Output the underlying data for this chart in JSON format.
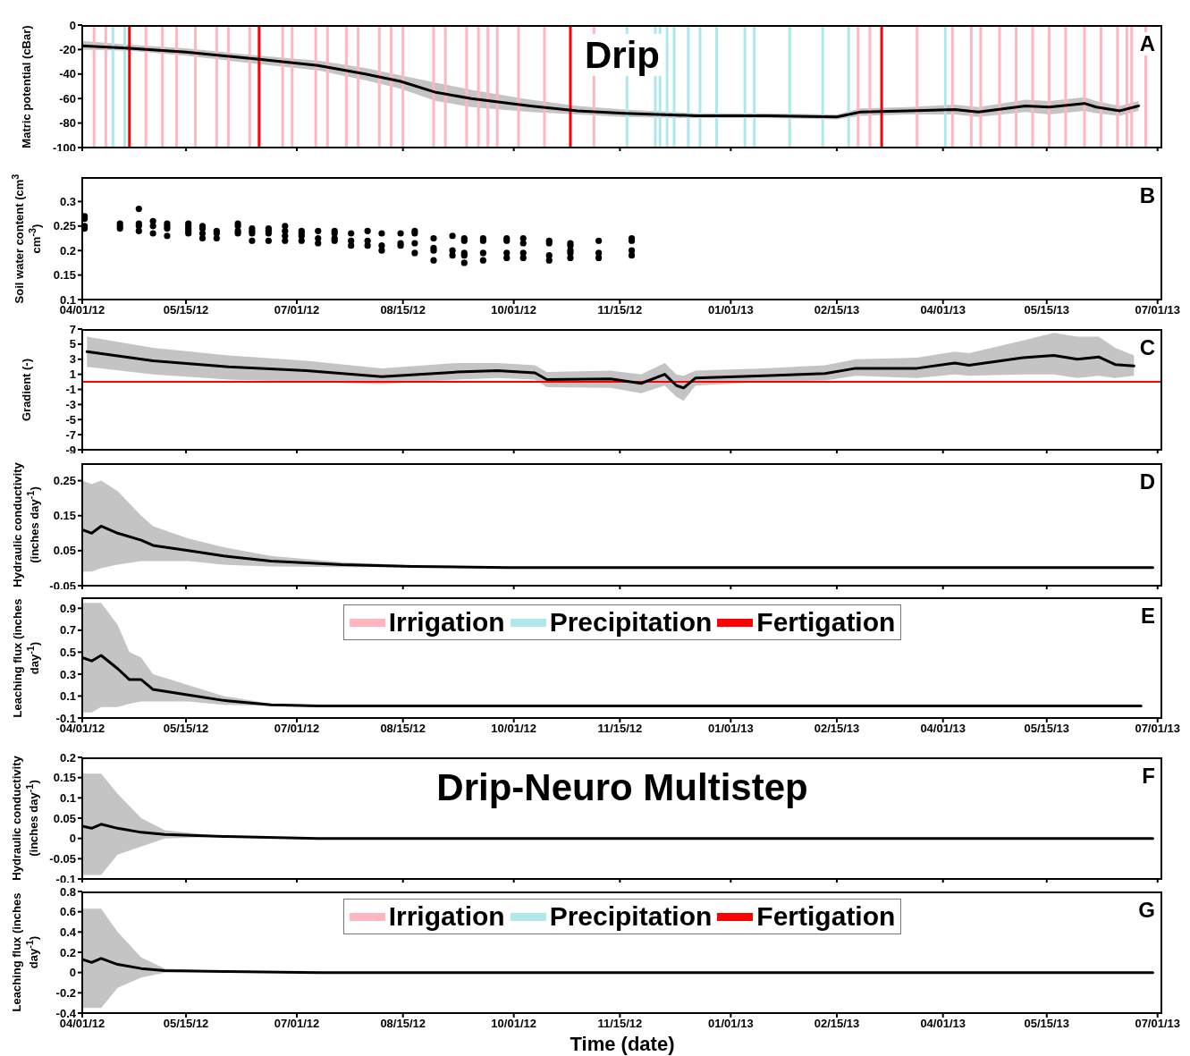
{
  "chart_data": [
    {
      "type": "line",
      "title": "Drip",
      "annotations": [
        "A"
      ],
      "ylabel": "Matric potential (cBar)",
      "xlim": [
        "2012-04-01",
        "2013-07-03"
      ],
      "ylim": [
        -100,
        0
      ],
      "yticks": [
        -100,
        -80,
        -60,
        -40,
        -20,
        0
      ],
      "tick_labels": "y",
      "marker": "none",
      "line_style": "solid",
      "xticks": [
        {
          "value": "2012-04-01",
          "label": null
        },
        {
          "value": "2012-05-15",
          "label": null
        },
        {
          "value": "2012-07-01",
          "label": null
        },
        {
          "value": "2012-08-15",
          "label": null
        },
        {
          "value": "2012-10-01",
          "label": null
        },
        {
          "value": "2012-11-15",
          "label": null
        },
        {
          "value": "2013-01-01",
          "label": null
        },
        {
          "value": "2013-02-15",
          "label": null
        },
        {
          "value": "2013-04-01",
          "label": null
        },
        {
          "value": "2013-05-15",
          "label": null
        },
        {
          "value": "2013-07-01",
          "label": null
        }
      ],
      "ref_lines": [
        {
          "axis": "x",
          "value": "2012-04-06",
          "color": "#ffb6c1"
        },
        {
          "axis": "x",
          "value": "2012-04-11",
          "color": "#ffb6c1"
        },
        {
          "axis": "x",
          "value": "2012-04-28",
          "color": "#ffb6c1"
        },
        {
          "axis": "x",
          "value": "2012-05-05",
          "color": "#ffb6c1"
        },
        {
          "axis": "x",
          "value": "2012-05-11",
          "color": "#ffb6c1"
        },
        {
          "axis": "x",
          "value": "2012-05-19",
          "color": "#ffb6c1"
        },
        {
          "axis": "x",
          "value": "2012-05-28",
          "color": "#ffb6c1"
        },
        {
          "axis": "x",
          "value": "2012-06-02",
          "color": "#ffb6c1"
        },
        {
          "axis": "x",
          "value": "2012-06-11",
          "color": "#ffb6c1"
        },
        {
          "axis": "x",
          "value": "2012-06-25",
          "color": "#ffb6c1"
        },
        {
          "axis": "x",
          "value": "2012-06-29",
          "color": "#ffb6c1"
        },
        {
          "axis": "x",
          "value": "2012-07-09",
          "color": "#ffb6c1"
        },
        {
          "axis": "x",
          "value": "2012-07-14",
          "color": "#ffb6c1"
        },
        {
          "axis": "x",
          "value": "2012-07-22",
          "color": "#ffb6c1"
        },
        {
          "axis": "x",
          "value": "2012-07-27",
          "color": "#ffb6c1"
        },
        {
          "axis": "x",
          "value": "2012-08-05",
          "color": "#ffb6c1"
        },
        {
          "axis": "x",
          "value": "2012-08-10",
          "color": "#ffb6c1"
        },
        {
          "axis": "x",
          "value": "2012-08-15",
          "color": "#ffb6c1"
        },
        {
          "axis": "x",
          "value": "2012-08-28",
          "color": "#ffb6c1"
        },
        {
          "axis": "x",
          "value": "2012-09-02",
          "color": "#ffb6c1"
        },
        {
          "axis": "x",
          "value": "2012-09-11",
          "color": "#ffb6c1"
        },
        {
          "axis": "x",
          "value": "2012-09-16",
          "color": "#ffb6c1"
        },
        {
          "axis": "x",
          "value": "2012-09-20",
          "color": "#ffb6c1"
        },
        {
          "axis": "x",
          "value": "2012-09-24",
          "color": "#ffb6c1"
        },
        {
          "axis": "x",
          "value": "2012-10-03",
          "color": "#ffb6c1"
        },
        {
          "axis": "x",
          "value": "2012-10-14",
          "color": "#ffb6c1"
        },
        {
          "axis": "x",
          "value": "2012-11-04",
          "color": "#ffb6c1"
        },
        {
          "axis": "x",
          "value": "2013-02-24",
          "color": "#ffb6c1"
        },
        {
          "axis": "x",
          "value": "2013-03-01",
          "color": "#ffb6c1"
        },
        {
          "axis": "x",
          "value": "2013-03-21",
          "color": "#ffb6c1"
        },
        {
          "axis": "x",
          "value": "2013-04-05",
          "color": "#ffb6c1"
        },
        {
          "axis": "x",
          "value": "2013-04-13",
          "color": "#ffb6c1"
        },
        {
          "axis": "x",
          "value": "2013-04-17",
          "color": "#ffb6c1"
        },
        {
          "axis": "x",
          "value": "2013-04-25",
          "color": "#ffb6c1"
        },
        {
          "axis": "x",
          "value": "2013-05-02",
          "color": "#ffb6c1"
        },
        {
          "axis": "x",
          "value": "2013-05-09",
          "color": "#ffb6c1"
        },
        {
          "axis": "x",
          "value": "2013-05-16",
          "color": "#ffb6c1"
        },
        {
          "axis": "x",
          "value": "2013-05-23",
          "color": "#ffb6c1"
        },
        {
          "axis": "x",
          "value": "2013-05-31",
          "color": "#ffb6c1"
        },
        {
          "axis": "x",
          "value": "2013-06-07",
          "color": "#ffb6c1"
        },
        {
          "axis": "x",
          "value": "2013-06-14",
          "color": "#ffb6c1"
        },
        {
          "axis": "x",
          "value": "2013-06-18",
          "color": "#ffb6c1"
        },
        {
          "axis": "x",
          "value": "2013-06-20",
          "color": "#ffb6c1"
        },
        {
          "axis": "x",
          "value": "2013-06-26",
          "color": "#ffb6c1"
        },
        {
          "axis": "x",
          "value": "2012-04-14",
          "color": "#aee8ea"
        },
        {
          "axis": "x",
          "value": "2012-04-19",
          "color": "#aee8ea"
        },
        {
          "axis": "x",
          "value": "2012-11-18",
          "color": "#aee8ea"
        },
        {
          "axis": "x",
          "value": "2012-11-30",
          "color": "#aee8ea"
        },
        {
          "axis": "x",
          "value": "2012-12-02",
          "color": "#aee8ea"
        },
        {
          "axis": "x",
          "value": "2012-12-05",
          "color": "#aee8ea"
        },
        {
          "axis": "x",
          "value": "2012-12-08",
          "color": "#aee8ea"
        },
        {
          "axis": "x",
          "value": "2012-12-14",
          "color": "#aee8ea"
        },
        {
          "axis": "x",
          "value": "2012-12-19",
          "color": "#aee8ea"
        },
        {
          "axis": "x",
          "value": "2012-12-26",
          "color": "#aee8ea"
        },
        {
          "axis": "x",
          "value": "2013-01-07",
          "color": "#aee8ea"
        },
        {
          "axis": "x",
          "value": "2013-01-11",
          "color": "#aee8ea"
        },
        {
          "axis": "x",
          "value": "2013-01-26",
          "color": "#aee8ea"
        },
        {
          "axis": "x",
          "value": "2013-02-09",
          "color": "#aee8ea"
        },
        {
          "axis": "x",
          "value": "2013-02-20",
          "color": "#aee8ea"
        },
        {
          "axis": "x",
          "value": "2013-04-02",
          "color": "#aee8ea"
        },
        {
          "axis": "x",
          "value": "2012-04-21",
          "color": "#ff0000"
        },
        {
          "axis": "x",
          "value": "2012-06-15",
          "color": "#ff0000"
        },
        {
          "axis": "x",
          "value": "2012-10-25",
          "color": "#ff0000"
        },
        {
          "axis": "x",
          "value": "2013-03-06",
          "color": "#ff0000"
        }
      ],
      "series": [
        {
          "color": "#000000",
          "x": [
            "2012-04-01",
            "2012-04-21",
            "2012-05-15",
            "2012-06-15",
            "2012-07-10",
            "2012-07-30",
            "2012-08-14",
            "2012-08-29",
            "2012-09-13",
            "2012-10-08",
            "2012-10-28",
            "2012-11-17",
            "2012-12-17",
            "2013-01-16",
            "2013-02-15",
            "2013-02-25",
            "2013-03-17",
            "2013-04-06",
            "2013-04-16",
            "2013-05-06",
            "2013-05-16",
            "2013-05-31",
            "2013-06-05",
            "2013-06-15",
            "2013-06-23"
          ],
          "values": [
            -17,
            -19,
            -22,
            -28,
            -33,
            -40,
            -46,
            -55,
            -60,
            -66,
            -70,
            -72,
            -74,
            -74,
            -75,
            -71,
            -70,
            -69,
            -71,
            -66,
            -67,
            -64,
            -67,
            -70,
            -66
          ],
          "lower": [
            -20,
            -21,
            -25,
            -32,
            -37,
            -45,
            -52,
            -62,
            -67,
            -71,
            -73,
            -75,
            -76,
            -76,
            -77,
            -74,
            -73,
            -73,
            -75,
            -71,
            -73,
            -70,
            -72,
            -74,
            -70
          ],
          "upper": [
            -13,
            -16,
            -19,
            -25,
            -29,
            -35,
            -41,
            -47,
            -53,
            -61,
            -66,
            -69,
            -72,
            -72,
            -73,
            -68,
            -67,
            -65,
            -67,
            -61,
            -62,
            -59,
            -62,
            -66,
            -62
          ]
        }
      ]
    },
    {
      "type": "scatter",
      "annotations": [
        "B"
      ],
      "ylabel": "Soil water content (cm$^{3}$ cm$^{-3}$)",
      "xlim": [
        "2012-04-01",
        "2013-07-03"
      ],
      "ylim": [
        0.1,
        0.35
      ],
      "yticks": [
        0.1,
        0.15,
        0.2,
        0.25,
        0.3
      ],
      "marker": "circle",
      "xticks": [
        {
          "value": "2012-04-01",
          "label": "04/01/12"
        },
        {
          "value": "2012-05-15",
          "label": "05/15/12"
        },
        {
          "value": "2012-07-01",
          "label": "07/01/12"
        },
        {
          "value": "2012-08-15",
          "label": "08/15/12"
        },
        {
          "value": "2012-10-01",
          "label": "10/01/12"
        },
        {
          "value": "2012-11-15",
          "label": "11/15/12"
        },
        {
          "value": "2013-01-01",
          "label": "01/01/13"
        },
        {
          "value": "2013-02-15",
          "label": "02/15/13"
        },
        {
          "value": "2013-04-01",
          "label": "04/01/13"
        },
        {
          "value": "2013-05-15",
          "label": "05/15/13"
        },
        {
          "value": "2013-07-01",
          "label": "07/01/13"
        }
      ],
      "series": [
        {
          "color": "#000000",
          "x": [
            "2012-04-02",
            "2012-04-02",
            "2012-04-02",
            "2012-04-02",
            "2012-04-17",
            "2012-04-17",
            "2012-04-17",
            "2012-04-25",
            "2012-04-25",
            "2012-04-25",
            "2012-04-25",
            "2012-05-01",
            "2012-05-01",
            "2012-05-01",
            "2012-05-07",
            "2012-05-07",
            "2012-05-07",
            "2012-05-07",
            "2012-05-16",
            "2012-05-16",
            "2012-05-16",
            "2012-05-16",
            "2012-05-16",
            "2012-05-22",
            "2012-05-22",
            "2012-05-22",
            "2012-05-22",
            "2012-05-28",
            "2012-05-28",
            "2012-05-28",
            "2012-06-06",
            "2012-06-06",
            "2012-06-06",
            "2012-06-06",
            "2012-06-12",
            "2012-06-12",
            "2012-06-12",
            "2012-06-12",
            "2012-06-19",
            "2012-06-19",
            "2012-06-19",
            "2012-06-19",
            "2012-06-26",
            "2012-06-26",
            "2012-06-26",
            "2012-06-26",
            "2012-07-03",
            "2012-07-03",
            "2012-07-03",
            "2012-07-03",
            "2012-07-10",
            "2012-07-10",
            "2012-07-10",
            "2012-07-17",
            "2012-07-17",
            "2012-07-17",
            "2012-07-17",
            "2012-07-24",
            "2012-07-24",
            "2012-07-24",
            "2012-07-31",
            "2012-07-31",
            "2012-07-31",
            "2012-08-06",
            "2012-08-06",
            "2012-08-06",
            "2012-08-14",
            "2012-08-14",
            "2012-08-14",
            "2012-08-20",
            "2012-08-20",
            "2012-08-20",
            "2012-08-20",
            "2012-08-28",
            "2012-08-28",
            "2012-08-28",
            "2012-08-28",
            "2012-09-05",
            "2012-09-05",
            "2012-09-05",
            "2012-09-10",
            "2012-09-10",
            "2012-09-10",
            "2012-09-10",
            "2012-09-10",
            "2012-09-18",
            "2012-09-18",
            "2012-09-18",
            "2012-09-18",
            "2012-09-28",
            "2012-09-28",
            "2012-09-28",
            "2012-09-28",
            "2012-10-05",
            "2012-10-05",
            "2012-10-05",
            "2012-10-05",
            "2012-10-16",
            "2012-10-16",
            "2012-10-16",
            "2012-10-16",
            "2012-10-25",
            "2012-10-25",
            "2012-10-25",
            "2012-10-25",
            "2012-10-25",
            "2012-11-06",
            "2012-11-06",
            "2012-11-06",
            "2012-11-20",
            "2012-11-20",
            "2012-11-20",
            "2012-11-20"
          ],
          "values": [
            0.27,
            0.265,
            0.25,
            0.245,
            0.255,
            0.25,
            0.245,
            0.285,
            0.255,
            0.25,
            0.24,
            0.26,
            0.25,
            0.235,
            0.255,
            0.25,
            0.245,
            0.23,
            0.255,
            0.25,
            0.245,
            0.24,
            0.235,
            0.25,
            0.245,
            0.235,
            0.225,
            0.24,
            0.235,
            0.225,
            0.255,
            0.25,
            0.24,
            0.235,
            0.245,
            0.24,
            0.235,
            0.22,
            0.245,
            0.24,
            0.235,
            0.22,
            0.25,
            0.24,
            0.23,
            0.22,
            0.24,
            0.235,
            0.23,
            0.22,
            0.24,
            0.225,
            0.215,
            0.24,
            0.235,
            0.225,
            0.22,
            0.235,
            0.22,
            0.21,
            0.24,
            0.22,
            0.21,
            0.235,
            0.21,
            0.2,
            0.235,
            0.215,
            0.21,
            0.24,
            0.235,
            0.215,
            0.195,
            0.225,
            0.205,
            0.2,
            0.18,
            0.23,
            0.2,
            0.19,
            0.225,
            0.22,
            0.195,
            0.19,
            0.175,
            0.225,
            0.22,
            0.195,
            0.18,
            0.225,
            0.22,
            0.195,
            0.185,
            0.225,
            0.215,
            0.195,
            0.185,
            0.22,
            0.215,
            0.19,
            0.18,
            0.215,
            0.21,
            0.2,
            0.195,
            0.185,
            0.22,
            0.195,
            0.185,
            0.225,
            0.22,
            0.2,
            0.19
          ]
        }
      ]
    },
    {
      "type": "line",
      "annotations": [
        "C"
      ],
      "ylabel": "Gradient (-)",
      "xlim": [
        "2012-04-01",
        "2013-07-03"
      ],
      "ylim": [
        -9,
        7
      ],
      "yticks": [
        -9,
        -7,
        -5,
        -3,
        -1,
        1,
        3,
        5,
        7
      ],
      "tick_labels": "y",
      "marker": "none",
      "line_style": "solid",
      "xticks": [
        {
          "value": "2012-04-01",
          "label": null
        },
        {
          "value": "2012-05-15",
          "label": null
        },
        {
          "value": "2012-07-01",
          "label": null
        },
        {
          "value": "2012-08-15",
          "label": null
        },
        {
          "value": "2012-10-01",
          "label": null
        },
        {
          "value": "2012-11-15",
          "label": null
        },
        {
          "value": "2013-01-01",
          "label": null
        },
        {
          "value": "2013-02-15",
          "label": null
        },
        {
          "value": "2013-04-01",
          "label": null
        },
        {
          "value": "2013-05-15",
          "label": null
        },
        {
          "value": "2013-07-01",
          "label": null
        }
      ],
      "ref_lines": [
        {
          "axis": "y",
          "value": 0,
          "color": "#ff0000"
        }
      ],
      "series": [
        {
          "color": "#000000",
          "x": [
            "2012-04-03",
            "2012-05-01",
            "2012-06-02",
            "2012-07-05",
            "2012-08-06",
            "2012-09-07",
            "2012-09-24",
            "2012-10-10",
            "2012-10-15",
            "2012-11-11",
            "2012-11-24",
            "2012-12-04",
            "2012-12-09",
            "2012-12-12",
            "2012-12-17",
            "2013-01-15",
            "2013-02-10",
            "2013-02-23",
            "2013-03-21",
            "2013-04-06",
            "2013-04-12",
            "2013-05-05",
            "2013-05-18",
            "2013-05-28",
            "2013-06-06",
            "2013-06-13",
            "2013-06-21"
          ],
          "values": [
            4,
            2.8,
            2,
            1.5,
            0.7,
            1.3,
            1.5,
            1.2,
            0.3,
            0.4,
            -0.2,
            1,
            -0.5,
            -0.8,
            0.5,
            0.8,
            1.1,
            1.8,
            1.8,
            2.5,
            2.2,
            3.2,
            3.5,
            3,
            3.3,
            2.3,
            2.1
          ],
          "lower": [
            2,
            1,
            0.3,
            0,
            -0.3,
            0.3,
            0.5,
            0.3,
            -0.7,
            -0.8,
            -1.5,
            -0.5,
            -2,
            -2.5,
            -0.5,
            0,
            0.2,
            0.8,
            0.5,
            1,
            0.8,
            1,
            1,
            0.5,
            0.8,
            0.5,
            0.8
          ],
          "upper": [
            6,
            4.5,
            3.5,
            2.8,
            1.8,
            2.5,
            2.5,
            2.2,
            1.3,
            1.5,
            1,
            2.5,
            1,
            0.8,
            1.5,
            1.8,
            2.2,
            3,
            3.2,
            4,
            3.8,
            5.5,
            6.5,
            6,
            6,
            4.5,
            3.5
          ]
        }
      ]
    },
    {
      "type": "line",
      "annotations": [
        "D"
      ],
      "ylabel": "Hydraulic conductivity (inches day$^{-1}$)",
      "xlim": [
        "2012-04-01",
        "2013-07-03"
      ],
      "ylim": [
        -0.05,
        0.3
      ],
      "yticks": [
        -0.05,
        0.05,
        0.15,
        0.25
      ],
      "tick_labels": "y",
      "marker": "none",
      "line_style": "solid",
      "xticks": [
        {
          "value": "2012-04-01",
          "label": null
        },
        {
          "value": "2012-05-15",
          "label": null
        },
        {
          "value": "2012-07-01",
          "label": null
        },
        {
          "value": "2012-08-15",
          "label": null
        },
        {
          "value": "2012-10-01",
          "label": null
        },
        {
          "value": "2012-11-15",
          "label": null
        },
        {
          "value": "2013-01-01",
          "label": null
        },
        {
          "value": "2013-02-15",
          "label": null
        },
        {
          "value": "2013-04-01",
          "label": null
        },
        {
          "value": "2013-05-15",
          "label": null
        },
        {
          "value": "2013-07-01",
          "label": null
        }
      ],
      "series": [
        {
          "color": "#000000",
          "x": [
            "2012-04-01",
            "2012-04-05",
            "2012-04-09",
            "2012-04-16",
            "2012-04-26",
            "2012-05-01",
            "2012-05-16",
            "2012-05-31",
            "2012-06-20",
            "2012-07-20",
            "2012-08-19",
            "2012-09-28",
            "2013-06-29"
          ],
          "values": [
            0.11,
            0.1,
            0.12,
            0.1,
            0.08,
            0.065,
            0.05,
            0.035,
            0.02,
            0.01,
            0.005,
            0.002,
            0.002
          ],
          "lower": [
            -0.01,
            -0.01,
            0,
            0.01,
            0.02,
            0.02,
            0.02,
            0.01,
            0.005,
            0.003,
            0.003,
            0.001,
            0.001
          ],
          "upper": [
            0.25,
            0.24,
            0.25,
            0.22,
            0.15,
            0.12,
            0.085,
            0.06,
            0.035,
            0.017,
            0.008,
            0.004,
            0.004
          ]
        }
      ]
    },
    {
      "type": "line",
      "annotations": [
        "E"
      ],
      "ylabel": "Leaching flux (inches day$^{-1}$)",
      "xlim": [
        "2012-04-01",
        "2013-07-03"
      ],
      "ylim": [
        -0.1,
        1.0
      ],
      "yticks": [
        -0.1,
        0.1,
        0.3,
        0.5,
        0.7,
        0.9
      ],
      "marker": "none",
      "line_style": "solid",
      "legend": "top",
      "xticks": [
        {
          "value": "2012-04-01",
          "label": "04/01/12"
        },
        {
          "value": "2012-05-15",
          "label": "05/15/12"
        },
        {
          "value": "2012-07-01",
          "label": "07/01/12"
        },
        {
          "value": "2012-08-15",
          "label": "08/15/12"
        },
        {
          "value": "2012-10-01",
          "label": "10/01/12"
        },
        {
          "value": "2012-11-15",
          "label": "11/15/12"
        },
        {
          "value": "2013-01-01",
          "label": "01/01/13"
        },
        {
          "value": "2013-02-15",
          "label": "02/15/13"
        },
        {
          "value": "2013-04-01",
          "label": "04/01/13"
        },
        {
          "value": "2013-05-15",
          "label": "05/15/13"
        },
        {
          "value": "2013-07-01",
          "label": "07/01/13"
        }
      ],
      "series": [
        {
          "color": "#000000",
          "x": [
            "2012-04-01",
            "2012-04-05",
            "2012-04-09",
            "2012-04-16",
            "2012-04-21",
            "2012-04-26",
            "2012-05-01",
            "2012-05-16",
            "2012-05-31",
            "2012-06-20",
            "2012-07-10",
            "2012-08-19",
            "2013-06-24"
          ],
          "values": [
            0.45,
            0.42,
            0.47,
            0.35,
            0.25,
            0.25,
            0.16,
            0.11,
            0.06,
            0.02,
            0.01,
            0.01,
            0.01
          ],
          "lower": [
            -0.05,
            -0.05,
            0,
            0,
            0.03,
            0.05,
            0.05,
            0.05,
            0.02,
            0.01,
            0.0,
            0.0,
            0.0
          ],
          "upper": [
            0.95,
            0.95,
            0.95,
            0.75,
            0.5,
            0.45,
            0.3,
            0.2,
            0.1,
            0.03,
            0.02,
            0.01,
            0.01
          ]
        },
        {
          "name": "Irrigation",
          "color": "#ffb6c1"
        },
        {
          "name": "Precipitation",
          "color": "#aee8ea"
        },
        {
          "name": "Fertigation",
          "color": "#ff0000"
        }
      ]
    },
    {
      "type": "line",
      "title": "Drip-Neuro Multistep",
      "annotations": [
        "F"
      ],
      "ylabel": "Hydraulic conductivity (inches day$^{-1}$)",
      "xlim": [
        "2012-04-01",
        "2013-07-03"
      ],
      "ylim": [
        -0.1,
        0.2
      ],
      "yticks": [
        -0.1,
        -0.05,
        0,
        0.05,
        0.1,
        0.15,
        0.2
      ],
      "tick_labels": "y",
      "marker": "none",
      "line_style": "solid",
      "xticks": [
        {
          "value": "2012-04-01",
          "label": null
        },
        {
          "value": "2012-05-15",
          "label": null
        },
        {
          "value": "2012-07-01",
          "label": null
        },
        {
          "value": "2012-08-15",
          "label": null
        },
        {
          "value": "2012-10-01",
          "label": null
        },
        {
          "value": "2012-11-15",
          "label": null
        },
        {
          "value": "2013-01-01",
          "label": null
        },
        {
          "value": "2013-02-15",
          "label": null
        },
        {
          "value": "2013-04-01",
          "label": null
        },
        {
          "value": "2013-05-15",
          "label": null
        },
        {
          "value": "2013-07-01",
          "label": null
        }
      ],
      "series": [
        {
          "color": "#000000",
          "x": [
            "2012-04-01",
            "2012-04-05",
            "2012-04-09",
            "2012-04-16",
            "2012-04-26",
            "2012-05-06",
            "2012-05-31",
            "2012-07-10",
            "2013-06-29"
          ],
          "values": [
            0.03,
            0.025,
            0.035,
            0.025,
            0.015,
            0.01,
            0.005,
            0,
            0
          ],
          "lower": [
            -0.09,
            -0.09,
            -0.09,
            -0.04,
            -0.02,
            0,
            0.005,
            0,
            0
          ],
          "upper": [
            0.16,
            0.16,
            0.16,
            0.11,
            0.05,
            0.02,
            0.005,
            0,
            0
          ]
        }
      ]
    },
    {
      "type": "line",
      "annotations": [
        "G"
      ],
      "ylabel": "Leaching flux (inches day$^{-1}$)",
      "xlabel": "Time (date)",
      "xlim": [
        "2012-04-01",
        "2013-07-03"
      ],
      "ylim": [
        -0.4,
        0.8
      ],
      "yticks": [
        -0.4,
        -0.2,
        0,
        0.2,
        0.4,
        0.6,
        0.8
      ],
      "marker": "none",
      "line_style": "solid",
      "legend": "top",
      "xticks": [
        {
          "value": "2012-04-01",
          "label": "04/01/12"
        },
        {
          "value": "2012-05-15",
          "label": "05/15/12"
        },
        {
          "value": "2012-07-01",
          "label": "07/01/12"
        },
        {
          "value": "2012-08-15",
          "label": "08/15/12"
        },
        {
          "value": "2012-10-01",
          "label": "10/01/12"
        },
        {
          "value": "2012-11-15",
          "label": "11/15/12"
        },
        {
          "value": "2013-01-01",
          "label": "01/01/13"
        },
        {
          "value": "2013-02-15",
          "label": "02/15/13"
        },
        {
          "value": "2013-04-01",
          "label": "04/01/13"
        },
        {
          "value": "2013-05-15",
          "label": "05/15/13"
        },
        {
          "value": "2013-07-01",
          "label": "07/01/13"
        }
      ],
      "series": [
        {
          "color": "#000000",
          "x": [
            "2012-04-01",
            "2012-04-05",
            "2012-04-09",
            "2012-04-16",
            "2012-04-26",
            "2012-05-06",
            "2012-05-31",
            "2012-07-10",
            "2013-06-29"
          ],
          "values": [
            0.13,
            0.1,
            0.14,
            0.08,
            0.04,
            0.02,
            0.01,
            0,
            0
          ],
          "lower": [
            -0.35,
            -0.35,
            -0.35,
            -0.15,
            -0.05,
            0,
            0.01,
            0,
            0
          ],
          "upper": [
            0.63,
            0.63,
            0.63,
            0.4,
            0.15,
            0.04,
            0.01,
            0,
            0
          ]
        },
        {
          "name": "Irrigation",
          "color": "#ffb6c1"
        },
        {
          "name": "Precipitation",
          "color": "#aee8ea"
        },
        {
          "name": "Fertigation",
          "color": "#ff0000"
        }
      ]
    }
  ]
}
